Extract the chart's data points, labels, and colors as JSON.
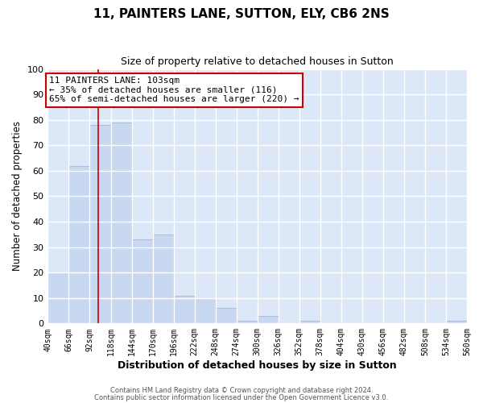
{
  "title": "11, PAINTERS LANE, SUTTON, ELY, CB6 2NS",
  "subtitle": "Size of property relative to detached houses in Sutton",
  "xlabel": "Distribution of detached houses by size in Sutton",
  "ylabel": "Number of detached properties",
  "bar_color": "#c8d8f0",
  "bar_edgecolor": "#a8bcd8",
  "background_color": "#dce8f8",
  "plot_bg_color": "#dce8f8",
  "grid_color": "#ffffff",
  "vline_x": 103,
  "vline_color": "#cc0000",
  "annotation_text": "11 PAINTERS LANE: 103sqm\n← 35% of detached houses are smaller (116)\n65% of semi-detached houses are larger (220) →",
  "annotation_box_color": "#ffffff",
  "annotation_box_edgecolor": "#cc0000",
  "bin_edges": [
    40,
    66,
    92,
    118,
    144,
    170,
    196,
    222,
    248,
    274,
    300,
    326,
    352,
    378,
    404,
    430,
    456,
    482,
    508,
    534,
    560
  ],
  "bar_heights": [
    20,
    62,
    78,
    79,
    33,
    35,
    11,
    10,
    6,
    1,
    3,
    0,
    1,
    0,
    0,
    0,
    0,
    0,
    0,
    1
  ],
  "ylim": [
    0,
    100
  ],
  "yticks": [
    0,
    10,
    20,
    30,
    40,
    50,
    60,
    70,
    80,
    90,
    100
  ],
  "tick_labels": [
    "40sqm",
    "66sqm",
    "92sqm",
    "118sqm",
    "144sqm",
    "170sqm",
    "196sqm",
    "222sqm",
    "248sqm",
    "274sqm",
    "300sqm",
    "326sqm",
    "352sqm",
    "378sqm",
    "404sqm",
    "430sqm",
    "456sqm",
    "482sqm",
    "508sqm",
    "534sqm",
    "560sqm"
  ],
  "footer_line1": "Contains HM Land Registry data © Crown copyright and database right 2024.",
  "footer_line2": "Contains public sector information licensed under the Open Government Licence v3.0."
}
